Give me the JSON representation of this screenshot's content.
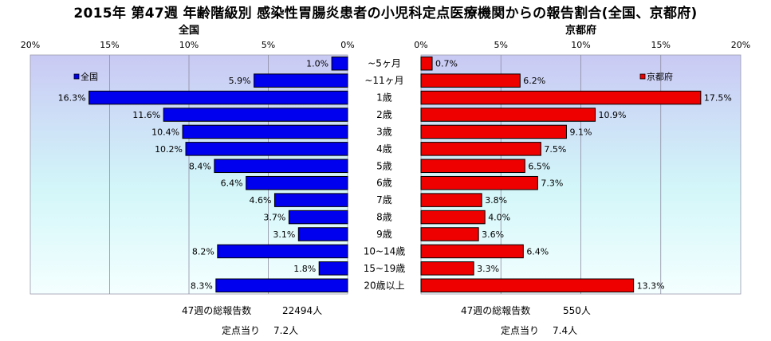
{
  "title": "2015年 第47週 年齢階級別 感染性胃腸炎患者の小児科定点医療機関からの報告割合(全国、京都府)",
  "colors": {
    "national_bar": "#0000ee",
    "kyoto_bar": "#ee0000",
    "bar_border": "#000000",
    "grid": "#8c8ca0"
  },
  "chart_data": {
    "type": "bar",
    "orientation": "horizontal",
    "categories": [
      "~5ヶ月",
      "~11ヶ月",
      "1歳",
      "2歳",
      "3歳",
      "4歳",
      "5歳",
      "6歳",
      "7歳",
      "8歳",
      "9歳",
      "10~14歳",
      "15~19歳",
      "20歳以上"
    ],
    "tick_labels": [
      "0%",
      "5%",
      "10%",
      "15%",
      "20%"
    ],
    "xlim": [
      0,
      20
    ],
    "grid": true,
    "series": [
      {
        "name": "全国",
        "panel_title": "全国",
        "direction": "left",
        "values": [
          1.0,
          5.9,
          16.3,
          11.6,
          10.4,
          10.2,
          8.4,
          6.4,
          4.6,
          3.7,
          3.1,
          8.2,
          1.8,
          8.3
        ],
        "value_labels": [
          "1.0%",
          "5.9%",
          "16.3%",
          "11.6%",
          "10.4%",
          "10.2%",
          "8.4%",
          "6.4%",
          "4.6%",
          "3.7%",
          "3.1%",
          "8.2%",
          "1.8%",
          "8.3%"
        ],
        "legend_placement": "top-left"
      },
      {
        "name": "京都府",
        "panel_title": "京都府",
        "direction": "right",
        "values": [
          0.7,
          6.2,
          17.5,
          10.9,
          9.1,
          7.5,
          6.5,
          7.3,
          3.8,
          4.0,
          3.6,
          6.4,
          3.3,
          13.3
        ],
        "value_labels": [
          "0.7%",
          "6.2%",
          "17.5%",
          "10.9%",
          "9.1%",
          "7.5%",
          "6.5%",
          "7.3%",
          "3.8%",
          "4.0%",
          "3.6%",
          "6.4%",
          "3.3%",
          "13.3%"
        ],
        "legend_placement": "top-right"
      }
    ]
  },
  "summary": {
    "national": {
      "total_label": "47週の総報告数",
      "total_value": "22494人",
      "per_site_label": "定点当り",
      "per_site_value": "7.2人"
    },
    "kyoto": {
      "total_label": "47週の総報告数",
      "total_value": "550人",
      "per_site_label": "定点当り",
      "per_site_value": "7.4人"
    }
  }
}
